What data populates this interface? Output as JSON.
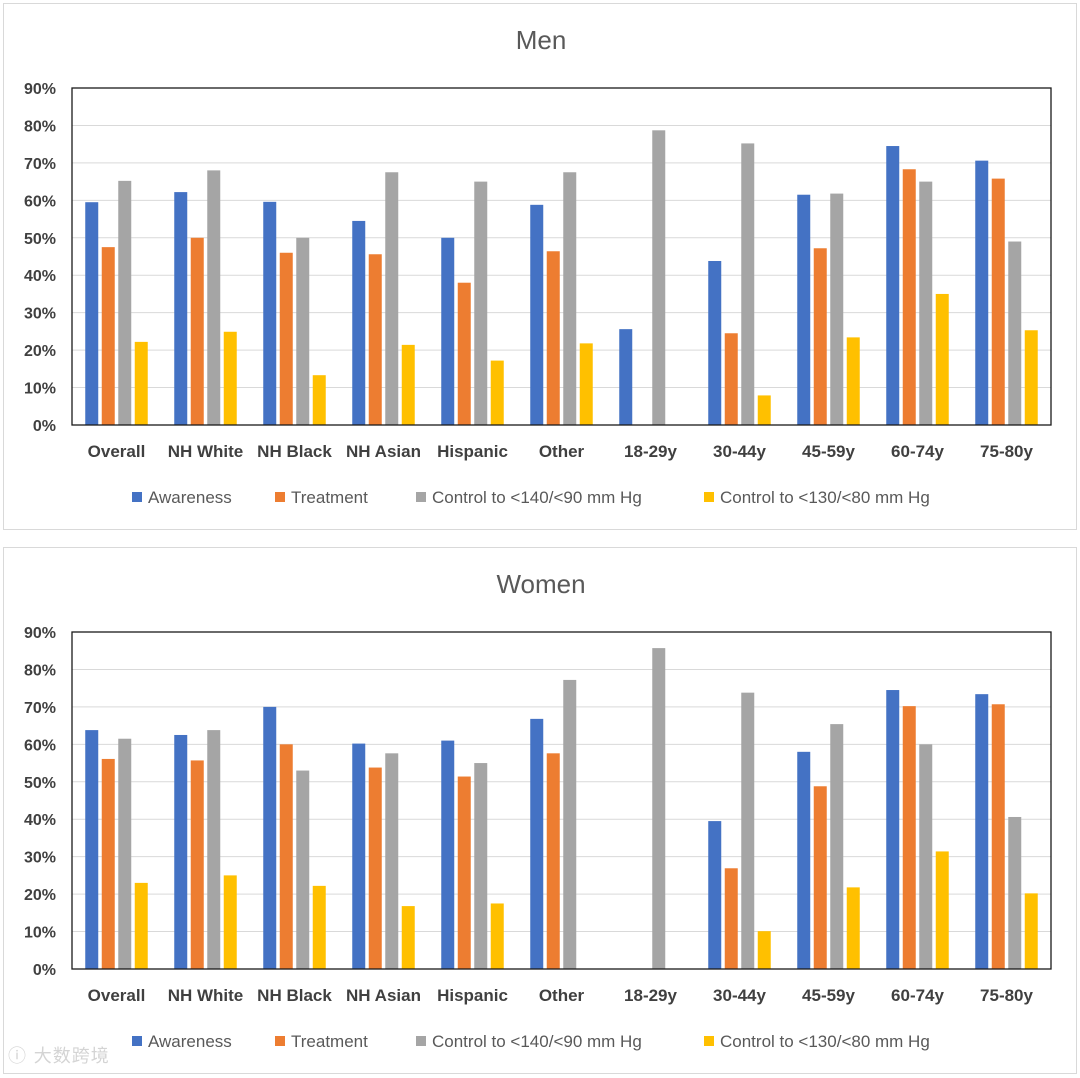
{
  "colors": {
    "Awareness": "#4472c4",
    "Treatment": "#ed7d31",
    "Control140": "#a5a5a5",
    "Control130": "#ffc000"
  },
  "chart_data": [
    {
      "type": "bar",
      "title": "Men",
      "categories": [
        "Overall",
        "NH White",
        "NH Black",
        "NH Asian",
        "Hispanic",
        "Other",
        "18-29y",
        "30-44y",
        "45-59y",
        "60-74y",
        "75-80y"
      ],
      "ylim": [
        0,
        90
      ],
      "yticks": [
        "0%",
        "10%",
        "20%",
        "30%",
        "40%",
        "50%",
        "60%",
        "70%",
        "80%",
        "90%"
      ],
      "legend_position": "bottom",
      "series": [
        {
          "name": "Awareness",
          "color_key": "Awareness",
          "values": [
            59.5,
            62.2,
            59.6,
            54.5,
            50,
            58.8,
            25.6,
            43.8,
            61.5,
            74.5,
            70.6
          ]
        },
        {
          "name": "Treatment",
          "color_key": "Treatment",
          "values": [
            47.5,
            50,
            46,
            45.6,
            38,
            46.4,
            null,
            24.5,
            47.2,
            68.3,
            65.8
          ]
        },
        {
          "name": "Control to <140/<90 mm Hg",
          "color_key": "Control140",
          "values": [
            65.2,
            68,
            50,
            67.5,
            65,
            67.5,
            78.7,
            75.2,
            61.8,
            65,
            49
          ]
        },
        {
          "name": "Control to <130/<80 mm Hg",
          "color_key": "Control130",
          "values": [
            22.2,
            24.9,
            13.3,
            21.4,
            17.2,
            21.8,
            null,
            7.9,
            23.4,
            35,
            25.3
          ]
        }
      ]
    },
    {
      "type": "bar",
      "title": "Women",
      "categories": [
        "Overall",
        "NH White",
        "NH Black",
        "NH Asian",
        "Hispanic",
        "Other",
        "18-29y",
        "30-44y",
        "45-59y",
        "60-74y",
        "75-80y"
      ],
      "ylim": [
        0,
        90
      ],
      "yticks": [
        "0%",
        "10%",
        "20%",
        "30%",
        "40%",
        "50%",
        "60%",
        "70%",
        "80%",
        "90%"
      ],
      "legend_position": "bottom",
      "series": [
        {
          "name": "Awareness",
          "color_key": "Awareness",
          "values": [
            63.8,
            62.5,
            70,
            60.2,
            61,
            66.8,
            null,
            39.5,
            58,
            74.5,
            73.4
          ]
        },
        {
          "name": "Treatment",
          "color_key": "Treatment",
          "values": [
            56.1,
            55.7,
            60,
            53.8,
            51.4,
            57.6,
            null,
            26.9,
            48.8,
            70.2,
            70.7
          ]
        },
        {
          "name": "Control to <140/<90 mm Hg",
          "color_key": "Control140",
          "values": [
            61.5,
            63.8,
            53,
            57.6,
            55,
            77.2,
            85.7,
            73.8,
            65.4,
            60,
            40.6
          ]
        },
        {
          "name": "Control to <130/<80 mm Hg",
          "color_key": "Control130",
          "values": [
            23,
            25,
            22.2,
            16.8,
            17.5,
            null,
            null,
            10.1,
            21.8,
            31.4,
            20.2
          ]
        }
      ]
    }
  ],
  "watermark": "大数跨境"
}
